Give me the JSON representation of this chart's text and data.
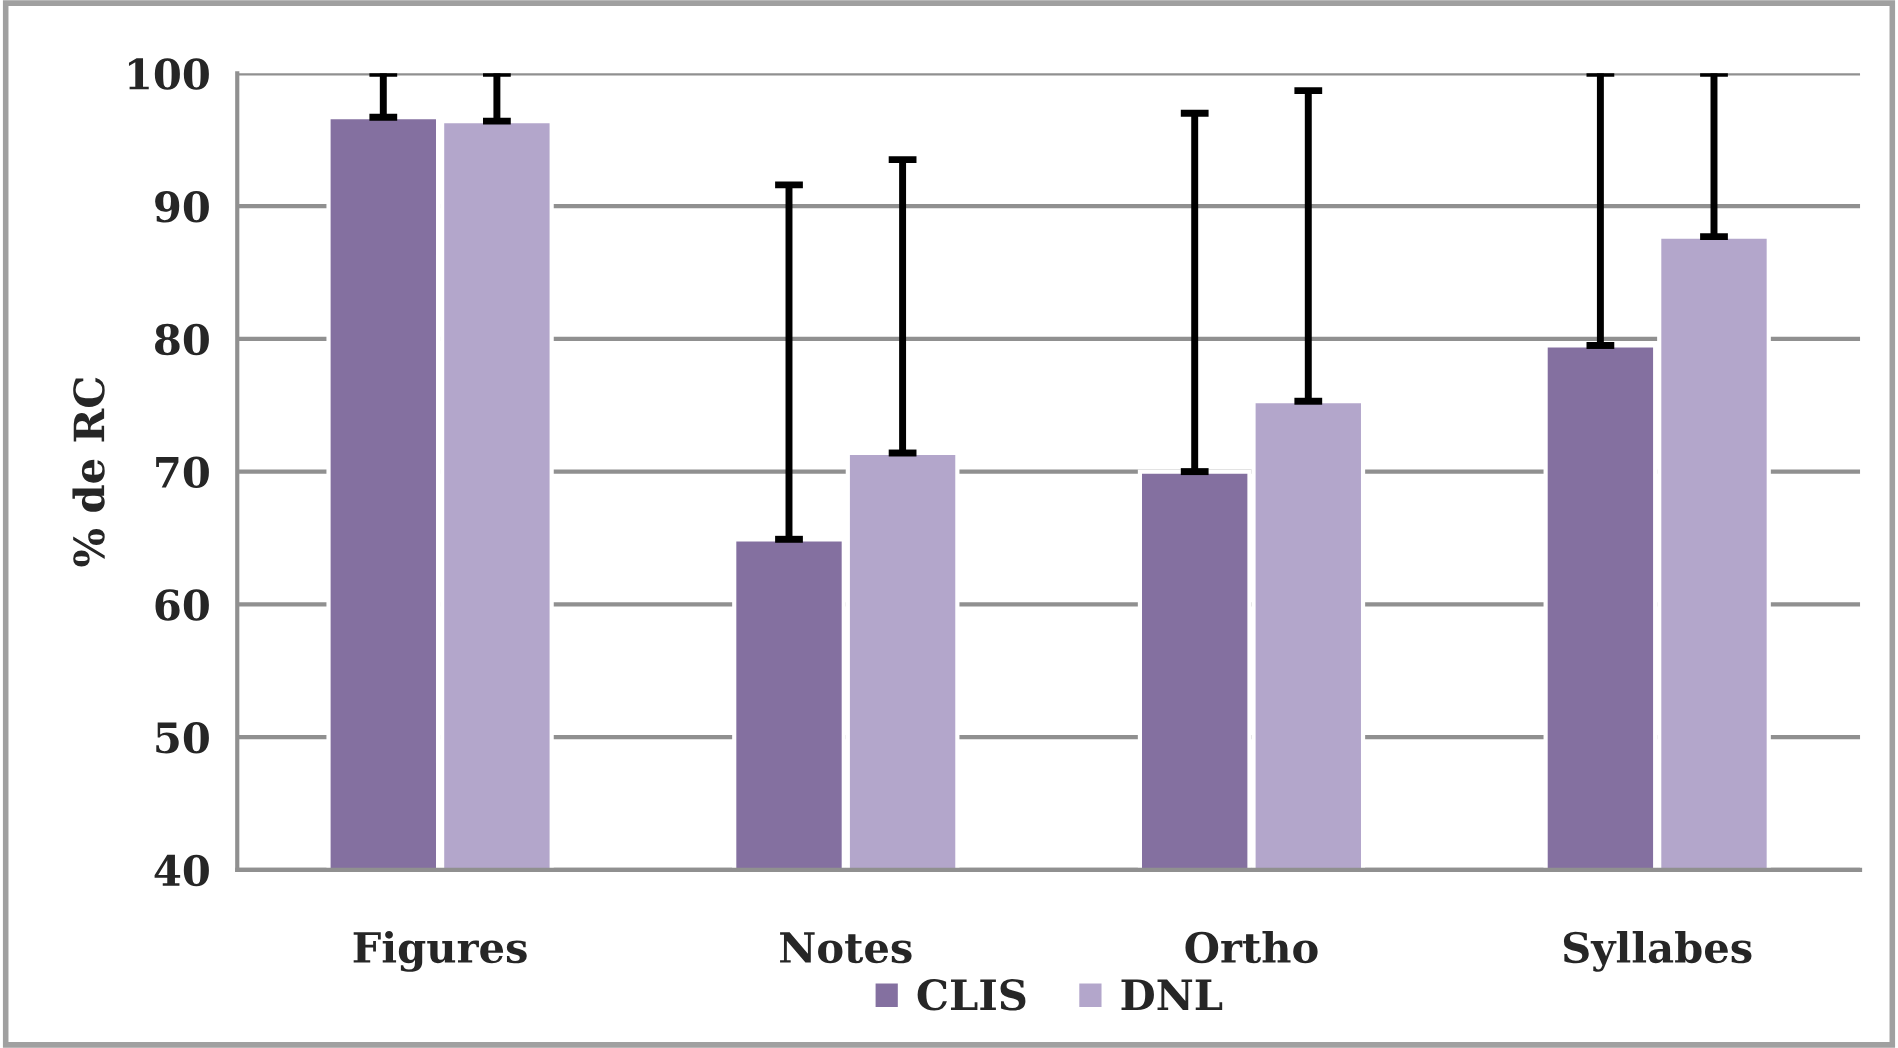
{
  "chart_data": {
    "type": "bar",
    "ylabel": "% de RC",
    "categories": [
      "Figures",
      "Notes",
      "Ortho",
      "Syllabes"
    ],
    "series": [
      {
        "name": "CLIS",
        "color": "#8470a0",
        "values": [
          96.7,
          64.9,
          70.0,
          79.5
        ],
        "errors": [
          [
            96.7,
            100
          ],
          [
            64.9,
            91.6
          ],
          [
            70.0,
            97.0
          ],
          [
            79.5,
            100
          ]
        ]
      },
      {
        "name": "DNL",
        "color": "#b3a6cb",
        "values": [
          96.4,
          71.4,
          75.3,
          87.7
        ],
        "errors": [
          [
            96.4,
            100
          ],
          [
            71.4,
            93.5
          ],
          [
            75.3,
            98.7
          ],
          [
            87.7,
            100
          ]
        ]
      }
    ],
    "ylim": [
      40,
      100
    ],
    "yticks": [
      40,
      50,
      60,
      70,
      80,
      90,
      100
    ],
    "grid": "y",
    "legend": "bottom"
  }
}
